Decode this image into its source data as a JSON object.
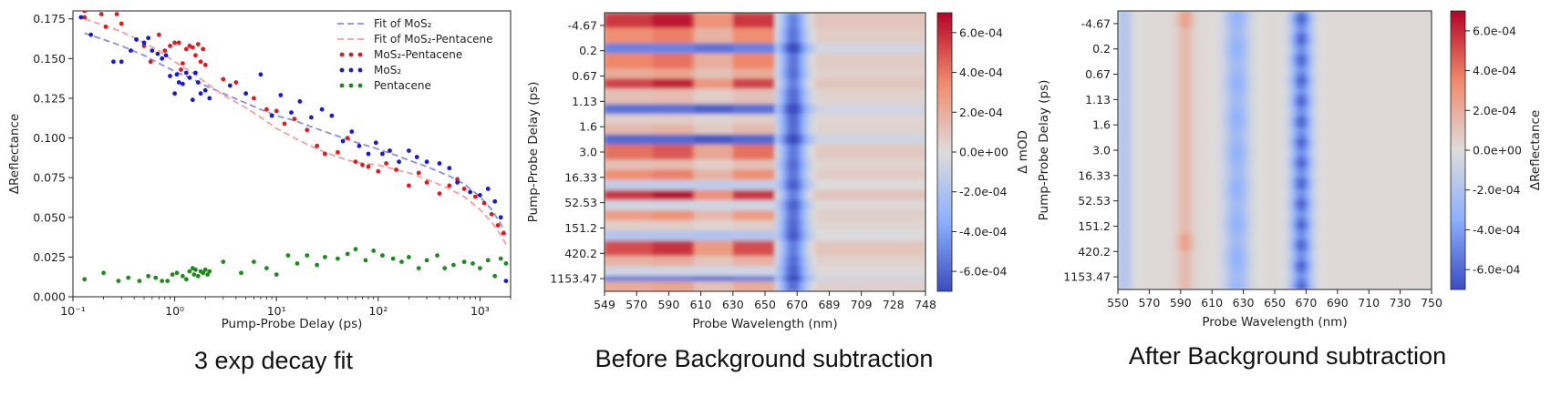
{
  "captions": [
    "3 exp decay fit",
    "Before Background subtraction",
    "After Background subtraction"
  ],
  "chart_data": [
    {
      "type": "scatter",
      "xlabel": "Pump-Probe Delay (ps)",
      "ylabel": "ΔReflectance",
      "xscale": "log",
      "xlim": [
        0.1,
        2000
      ],
      "ylim": [
        0.0,
        0.18
      ],
      "xticks": [
        "10⁻¹",
        "10⁰",
        "10¹",
        "10²",
        "10³"
      ],
      "yticks": [
        "0.000",
        "0.025",
        "0.050",
        "0.075",
        "0.100",
        "0.125",
        "0.150",
        "0.175"
      ],
      "legend_position": "top-right",
      "legend": [
        "Fit of MoS₂",
        "Fit of MoS₂-Pentacene",
        "MoS₂-Pentacene",
        "MoS₂",
        "Pentacene"
      ],
      "colors": {
        "fit_mos2": "#8c8ce6",
        "fit_mos2_pentacene": "#f0a0a0",
        "mos2_pentacene": "#e8171b",
        "mos2": "#1a1ad6",
        "pentacene": "#1e8a1e"
      },
      "series": [
        {
          "name": "Fit of MoS₂",
          "style": "dashed",
          "x": [
            0.13,
            0.2,
            0.3,
            0.5,
            0.7,
            1,
            1.5,
            2,
            3,
            5,
            7,
            10,
            15,
            20,
            30,
            50,
            70,
            100,
            150,
            200,
            300,
            500,
            700,
            1000,
            1300,
            1600,
            1800
          ],
          "y": [
            0.166,
            0.162,
            0.158,
            0.152,
            0.147,
            0.142,
            0.137,
            0.133,
            0.128,
            0.122,
            0.118,
            0.114,
            0.111,
            0.108,
            0.104,
            0.099,
            0.096,
            0.093,
            0.089,
            0.086,
            0.082,
            0.076,
            0.071,
            0.063,
            0.055,
            0.046,
            0.039
          ]
        },
        {
          "name": "Fit of MoS₂-Pentacene",
          "style": "dashed",
          "x": [
            0.13,
            0.2,
            0.3,
            0.5,
            0.7,
            1,
            1.5,
            2,
            3,
            5,
            7,
            10,
            15,
            20,
            30,
            50,
            70,
            100,
            150,
            200,
            300,
            500,
            700,
            1000,
            1300,
            1600,
            1800
          ],
          "y": [
            0.175,
            0.171,
            0.167,
            0.16,
            0.155,
            0.148,
            0.141,
            0.135,
            0.127,
            0.119,
            0.113,
            0.106,
            0.1,
            0.096,
            0.091,
            0.086,
            0.084,
            0.083,
            0.08,
            0.078,
            0.074,
            0.068,
            0.063,
            0.055,
            0.047,
            0.039,
            0.033
          ]
        },
        {
          "name": "MoS₂-Pentacene",
          "x": [
            0.13,
            0.13,
            0.19,
            0.21,
            0.27,
            0.3,
            0.42,
            0.5,
            0.58,
            0.7,
            0.8,
            0.9,
            1.0,
            1.1,
            1.15,
            1.2,
            1.3,
            1.4,
            1.5,
            1.6,
            1.7,
            1.8,
            1.9,
            2.0,
            3.0,
            4,
            6,
            8,
            10,
            12,
            15,
            20,
            25,
            30,
            40,
            50,
            60,
            70,
            80,
            100,
            120,
            150,
            200,
            250,
            300,
            400,
            500,
            600,
            700,
            900,
            1100,
            1300,
            1500,
            1700
          ],
          "y": [
            0.18,
            0.176,
            0.178,
            0.17,
            0.178,
            0.172,
            0.162,
            0.158,
            0.148,
            0.165,
            0.155,
            0.158,
            0.16,
            0.16,
            0.143,
            0.147,
            0.156,
            0.158,
            0.157,
            0.152,
            0.159,
            0.148,
            0.156,
            0.146,
            0.137,
            0.135,
            0.125,
            0.118,
            0.117,
            0.109,
            0.112,
            0.105,
            0.095,
            0.09,
            0.091,
            0.1,
            0.085,
            0.083,
            0.082,
            0.079,
            0.084,
            0.08,
            0.07,
            0.078,
            0.072,
            0.065,
            0.07,
            0.074,
            0.068,
            0.063,
            0.059,
            0.052,
            0.045,
            0.04
          ]
        },
        {
          "name": "MoS₂",
          "x": [
            0.12,
            0.15,
            0.25,
            0.3,
            0.37,
            0.42,
            0.5,
            0.55,
            0.6,
            0.68,
            0.75,
            0.82,
            0.9,
            1.0,
            1.05,
            1.1,
            1.2,
            1.3,
            1.4,
            1.5,
            1.6,
            1.7,
            1.8,
            2.0,
            2.2,
            3.5,
            5,
            7,
            9,
            11,
            14,
            17,
            22,
            28,
            35,
            45,
            55,
            65,
            80,
            95,
            110,
            130,
            160,
            200,
            240,
            300,
            400,
            500,
            600,
            800,
            1000,
            1200,
            1400,
            1600,
            1800
          ],
          "y": [
            0.176,
            0.165,
            0.148,
            0.148,
            0.155,
            0.162,
            0.16,
            0.163,
            0.155,
            0.153,
            0.15,
            0.152,
            0.139,
            0.128,
            0.14,
            0.135,
            0.134,
            0.141,
            0.138,
            0.124,
            0.141,
            0.135,
            0.128,
            0.13,
            0.125,
            0.133,
            0.128,
            0.14,
            0.114,
            0.127,
            0.116,
            0.123,
            0.113,
            0.118,
            0.114,
            0.098,
            0.104,
            0.095,
            0.09,
            0.097,
            0.09,
            0.092,
            0.085,
            0.092,
            0.088,
            0.085,
            0.084,
            0.081,
            0.072,
            0.066,
            0.064,
            0.068,
            0.06,
            0.05,
            0.01
          ]
        },
        {
          "name": "Pentacene",
          "x": [
            0.13,
            0.2,
            0.28,
            0.35,
            0.45,
            0.55,
            0.65,
            0.75,
            0.85,
            0.95,
            1.05,
            1.2,
            1.3,
            1.4,
            1.5,
            1.55,
            1.6,
            1.7,
            1.8,
            1.9,
            2.0,
            2.1,
            2.2,
            3,
            4.5,
            6,
            8,
            10,
            13,
            16,
            20,
            25,
            30,
            40,
            50,
            60,
            75,
            90,
            110,
            140,
            170,
            200,
            250,
            300,
            380,
            450,
            550,
            700,
            850,
            1000,
            1200,
            1400,
            1600,
            1800
          ],
          "y": [
            0.011,
            0.015,
            0.01,
            0.012,
            0.01,
            0.013,
            0.012,
            0.01,
            0.01,
            0.014,
            0.015,
            0.013,
            0.011,
            0.016,
            0.018,
            0.014,
            0.017,
            0.013,
            0.016,
            0.015,
            0.017,
            0.014,
            0.016,
            0.022,
            0.015,
            0.022,
            0.018,
            0.014,
            0.026,
            0.021,
            0.026,
            0.02,
            0.025,
            0.024,
            0.027,
            0.03,
            0.023,
            0.029,
            0.026,
            0.024,
            0.022,
            0.025,
            0.018,
            0.023,
            0.026,
            0.018,
            0.02,
            0.022,
            0.021,
            0.018,
            0.023,
            0.013,
            0.024,
            0.021
          ]
        }
      ]
    },
    {
      "type": "heatmap",
      "xlabel": "Probe Wavelength (nm)",
      "ylabel": "Pump-Probe Delay (ps)",
      "colorbar_label": "Δ mOD",
      "colormap": "coolwarm",
      "vlim": [
        -0.0007,
        0.0007
      ],
      "xticks": [
        "549",
        "570",
        "590",
        "610",
        "630",
        "650",
        "670",
        "689",
        "709",
        "728",
        "748"
      ],
      "yticks": [
        "-4.67",
        "0.2",
        "0.67",
        "1.13",
        "1.6",
        "3.0",
        "16.33",
        "52.53",
        "151.2",
        "420.2",
        "1153.47"
      ],
      "colorbar_ticks": [
        "6.0e-04",
        "4.0e-04",
        "2.0e-04",
        "0.0e+00",
        "-2.0e-04",
        "-4.0e-04",
        "-6.0e-04"
      ]
    },
    {
      "type": "heatmap",
      "xlabel": "Probe Wavelength (nm)",
      "ylabel": "Pump-Probe Delay (ps)",
      "colorbar_label": "ΔReflectance",
      "colormap": "coolwarm",
      "vlim": [
        -0.0007,
        0.0007
      ],
      "xticks": [
        "550",
        "570",
        "590",
        "610",
        "630",
        "650",
        "670",
        "690",
        "710",
        "730",
        "750"
      ],
      "yticks": [
        "-4.67",
        "0.2",
        "0.67",
        "1.13",
        "1.6",
        "3.0",
        "16.33",
        "52.53",
        "151.2",
        "420.2",
        "1153.47"
      ],
      "colorbar_ticks": [
        "6.0e-04",
        "4.0e-04",
        "2.0e-04",
        "0.0e+00",
        "-2.0e-04",
        "-4.0e-04",
        "-6.0e-04"
      ]
    }
  ]
}
